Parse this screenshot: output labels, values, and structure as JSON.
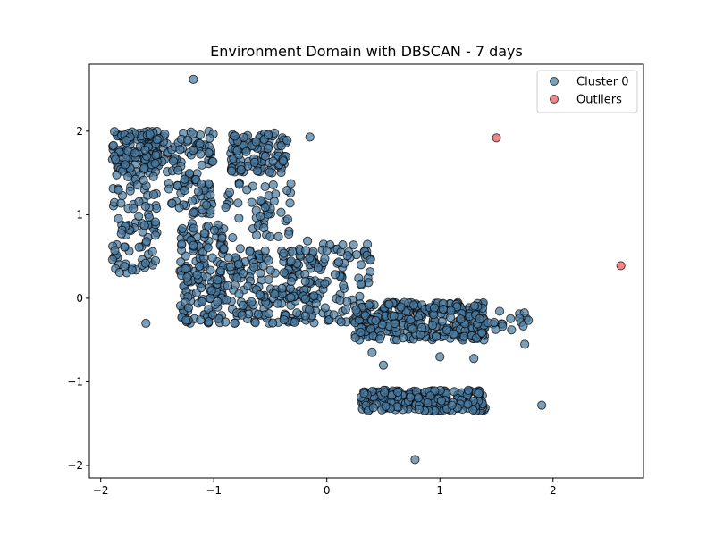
{
  "chart_data": {
    "type": "scatter",
    "title": "Environment Domain with DBSCAN - 7 days",
    "xlabel": "",
    "ylabel": "",
    "xlim": [
      -2.1,
      2.8
    ],
    "ylim": [
      -2.15,
      2.8
    ],
    "xticks": [
      -2,
      -1,
      0,
      1,
      2
    ],
    "yticks": [
      -2,
      -1,
      0,
      1,
      2
    ],
    "xtick_labels": [
      "−2",
      "−1",
      "0",
      "1",
      "2"
    ],
    "ytick_labels": [
      "−2",
      "−1",
      "0",
      "1",
      "2"
    ],
    "grid": false,
    "legend_position": "top-right",
    "series": [
      {
        "name": "Cluster 0",
        "color": "#4a7aa0",
        "point_count": 1500,
        "regions": [
          {
            "x": [
              -1.9,
              -1.4
            ],
            "y": [
              1.5,
              2.0
            ],
            "weight": 150
          },
          {
            "x": [
              -1.9,
              -1.5
            ],
            "y": [
              0.3,
              1.5
            ],
            "weight": 90
          },
          {
            "x": [
              -1.4,
              -1.0
            ],
            "y": [
              1.0,
              2.0
            ],
            "weight": 100
          },
          {
            "x": [
              -0.85,
              -0.35
            ],
            "y": [
              1.5,
              2.0
            ],
            "weight": 110
          },
          {
            "x": [
              -0.9,
              -0.3
            ],
            "y": [
              0.7,
              1.4
            ],
            "weight": 50
          },
          {
            "x": [
              -1.3,
              -0.9
            ],
            "y": [
              -0.3,
              0.9
            ],
            "weight": 160
          },
          {
            "x": [
              -0.9,
              -0.1
            ],
            "y": [
              -0.3,
              0.6
            ],
            "weight": 190
          },
          {
            "x": [
              -0.2,
              0.4
            ],
            "y": [
              -0.3,
              0.7
            ],
            "weight": 90
          },
          {
            "x": [
              0.25,
              0.9
            ],
            "y": [
              -0.5,
              -0.05
            ],
            "weight": 180
          },
          {
            "x": [
              0.9,
              1.4
            ],
            "y": [
              -0.5,
              -0.05
            ],
            "weight": 140
          },
          {
            "x": [
              1.3,
              1.8
            ],
            "y": [
              -0.4,
              -0.15
            ],
            "weight": 20
          },
          {
            "x": [
              0.3,
              1.4
            ],
            "y": [
              -1.35,
              -1.1
            ],
            "weight": 260
          }
        ],
        "scattered_points": [
          {
            "x": -1.18,
            "y": 2.62
          },
          {
            "x": -1.6,
            "y": -0.3
          },
          {
            "x": 0.78,
            "y": -1.93
          },
          {
            "x": 1.9,
            "y": -1.28
          },
          {
            "x": -0.15,
            "y": 1.93
          },
          {
            "x": 0.4,
            "y": -0.65
          },
          {
            "x": 1.75,
            "y": -0.55
          },
          {
            "x": 1.3,
            "y": -0.72
          },
          {
            "x": 1.0,
            "y": -0.7
          },
          {
            "x": 0.5,
            "y": -0.8
          }
        ]
      },
      {
        "name": "Outliers",
        "color": "#e8575a",
        "points": [
          {
            "x": 1.5,
            "y": 1.92
          },
          {
            "x": 2.6,
            "y": 0.39
          }
        ]
      }
    ]
  }
}
